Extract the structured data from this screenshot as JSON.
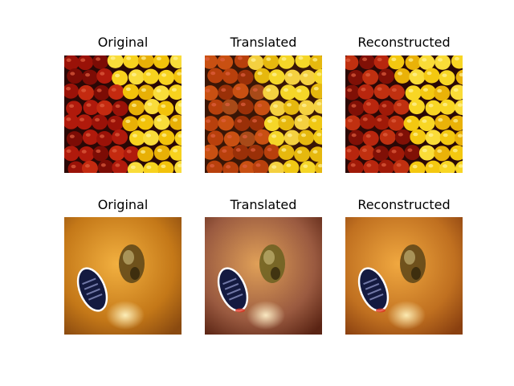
{
  "rows": [
    {
      "panels": [
        {
          "title": "Original",
          "variant": "original"
        },
        {
          "title": "Translated",
          "variant": "translated"
        },
        {
          "title": "Reconstructed",
          "variant": "reconstructed"
        }
      ]
    },
    {
      "panels": [
        {
          "title": "Original",
          "variant": "original"
        },
        {
          "title": "Translated",
          "variant": "translated"
        },
        {
          "title": "Reconstructed",
          "variant": "reconstructed"
        }
      ]
    }
  ]
}
